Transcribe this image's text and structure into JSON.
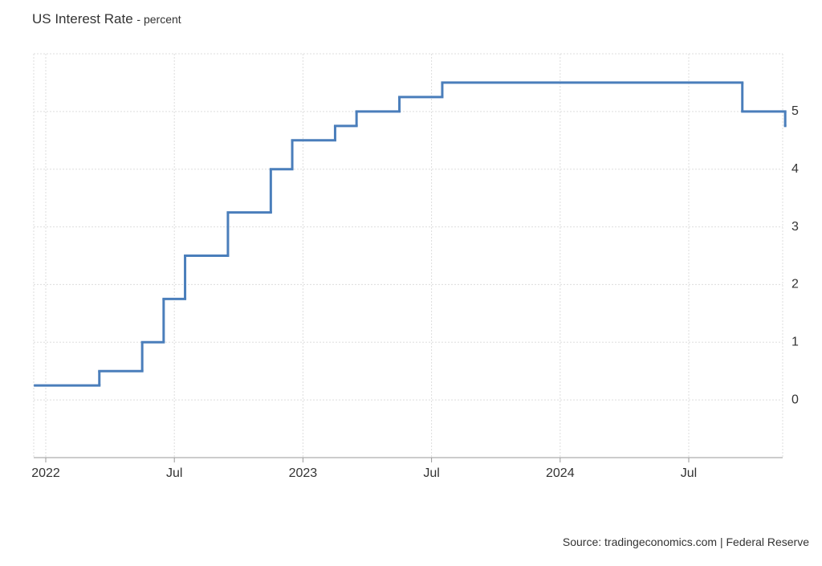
{
  "chart_data": {
    "type": "step",
    "title": "US Interest Rate",
    "subtitle": "- percent",
    "source": "Source: tradingeconomics.com | Federal Reserve",
    "x": [
      "2021-12",
      "2022-03",
      "2022-05",
      "2022-06",
      "2022-07",
      "2022-09",
      "2022-11",
      "2022-12",
      "2023-02",
      "2023-03",
      "2023-05",
      "2023-07",
      "2024-09",
      "2024-11"
    ],
    "series": [
      {
        "name": "US Interest Rate",
        "color": "#4a7ebb",
        "values": [
          0.25,
          0.5,
          1,
          1.75,
          2.5,
          3.25,
          4,
          4.5,
          4.75,
          5,
          5.25,
          5.5,
          5,
          4.75
        ]
      }
    ],
    "xticks": [
      {
        "value": "2022-01",
        "label": "2022"
      },
      {
        "value": "2022-07",
        "label": "Jul"
      },
      {
        "value": "2023-01",
        "label": "2023"
      },
      {
        "value": "2023-07",
        "label": "Jul"
      },
      {
        "value": "2024-01",
        "label": "2024"
      },
      {
        "value": "2024-07",
        "label": "Jul"
      }
    ],
    "ylim": [
      -1,
      6
    ],
    "yticks": [
      0,
      1,
      2,
      3,
      4,
      5
    ],
    "grid": true
  }
}
